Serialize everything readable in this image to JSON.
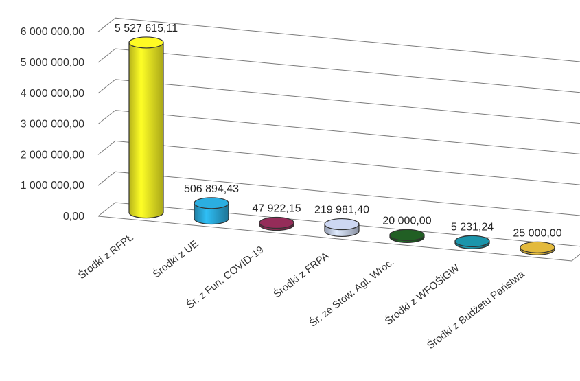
{
  "chart_data": {
    "type": "bar",
    "style": "3d-cylinder",
    "categories": [
      "Środki z RFPŁ",
      "Środki z UE",
      "Śr. z Fun. COVID-19",
      "Środki z FRPA",
      "Śr. ze Stow. Agl. Wroc.",
      "Środki z WFOŚiGW",
      "Środki z Budżetu Państwa"
    ],
    "values": [
      5527615.11,
      506894.43,
      47922.15,
      219981.4,
      20000.0,
      5231.24,
      25000.0
    ],
    "data_labels": [
      "5 527 615,11",
      "506 894,43",
      "47 922,15",
      "219 981,40",
      "20 000,00",
      "5 231,24",
      "25 000,00"
    ],
    "colors": [
      "#f2ee22",
      "#29a6d6",
      "#8e2a55",
      "#c3cde6",
      "#1f5a22",
      "#1a8ea3",
      "#d8b13a"
    ],
    "ylim": [
      0,
      6000000
    ],
    "yticks": [
      "0,00",
      "1 000 000,00",
      "2 000 000,00",
      "3 000 000,00",
      "4 000 000,00",
      "5 000 000,00",
      "6 000 000,00"
    ],
    "grid": true,
    "legend": "none"
  }
}
